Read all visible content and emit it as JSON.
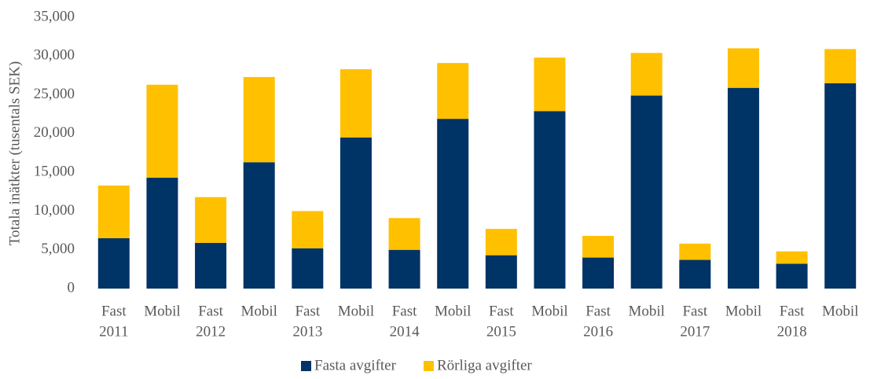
{
  "chart_data": {
    "type": "stacked_bar",
    "y_label": "Totala inätkter (tusentals SEK)",
    "categories": [
      [
        "Fast",
        "2011"
      ],
      [
        "Mobil"
      ],
      [
        "Fast",
        "2012"
      ],
      [
        "Mobil"
      ],
      [
        "Fast",
        "2013"
      ],
      [
        "Mobil"
      ],
      [
        "Fast",
        "2014"
      ],
      [
        "Mobil"
      ],
      [
        "Fast",
        "2015"
      ],
      [
        "Mobil"
      ],
      [
        "Fast",
        "2016"
      ],
      [
        "Mobil"
      ],
      [
        "Fast",
        "2017"
      ],
      [
        "Mobil"
      ],
      [
        "Fast",
        "2018"
      ],
      [
        "Mobil"
      ]
    ],
    "series": [
      {
        "name": "Fasta avgifter",
        "color": "#003366",
        "values": [
          6500,
          14300,
          5900,
          16300,
          5200,
          19500,
          5000,
          21900,
          4300,
          22900,
          4000,
          24900,
          3700,
          25900,
          3200,
          26500
        ]
      },
      {
        "name": "Rörliga avgifter",
        "color": "#ffc000",
        "values": [
          6800,
          12000,
          5900,
          11000,
          4800,
          8800,
          4100,
          7200,
          3400,
          6900,
          2800,
          5500,
          2100,
          5100,
          1600,
          4400
        ]
      }
    ],
    "ylim": [
      0,
      35000
    ],
    "yticks": [
      0,
      {
        "value": 5000,
        "label": "5,000"
      },
      {
        "value": 10000,
        "label": "10,000"
      },
      {
        "value": 15000,
        "label": "15,000"
      },
      {
        "value": 20000,
        "label": "20,000"
      },
      {
        "value": 25000,
        "label": "25,000"
      },
      {
        "value": 30000,
        "label": "30,000"
      },
      {
        "value": 35000,
        "label": "35,000"
      }
    ],
    "grid": false,
    "legend": "bottom"
  }
}
